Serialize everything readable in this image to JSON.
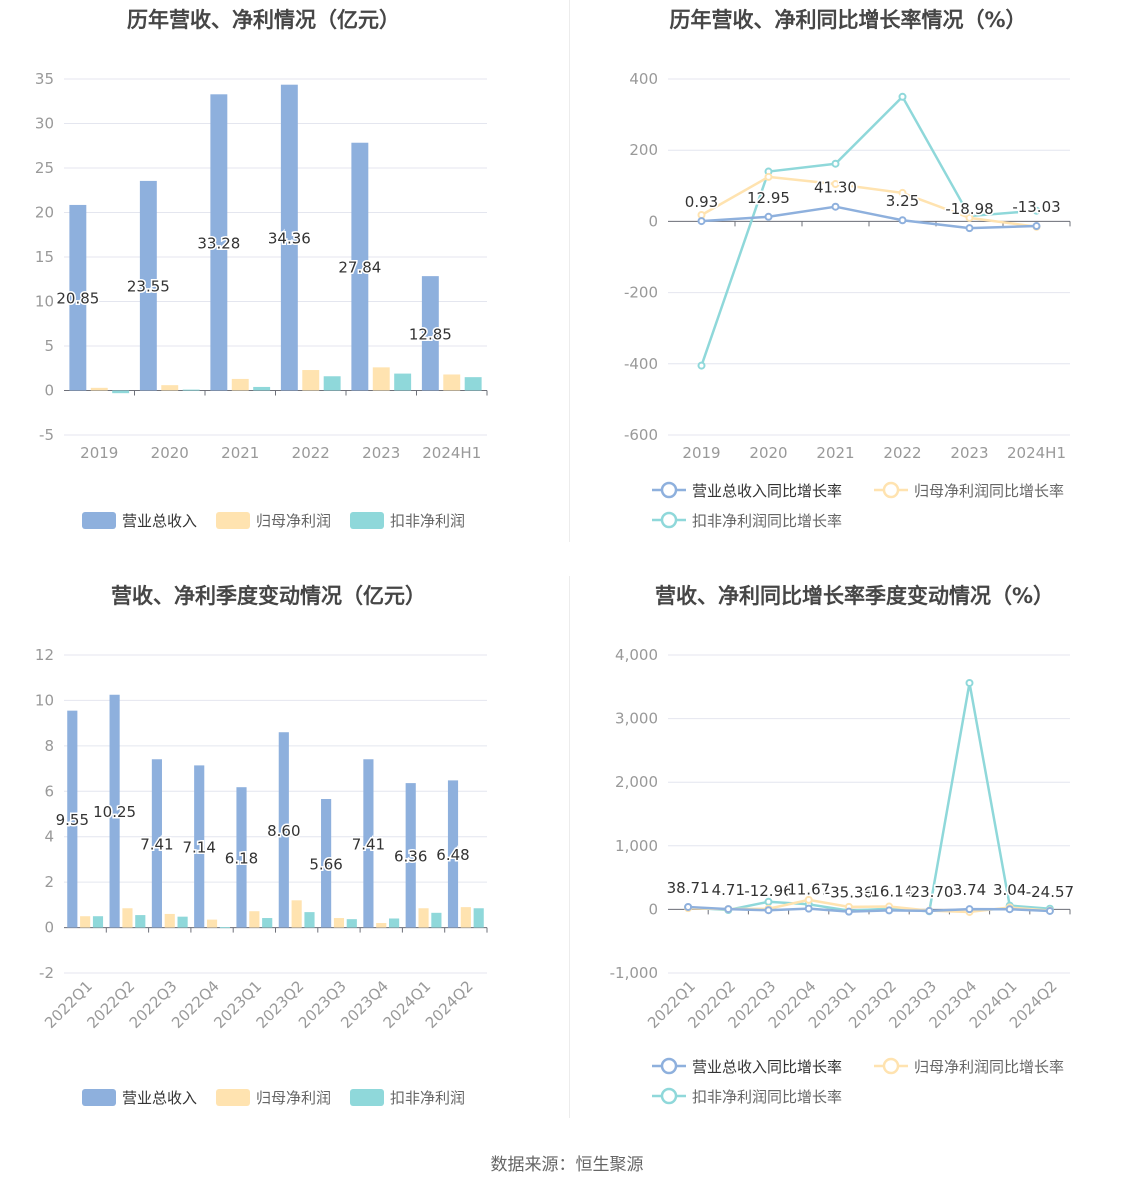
{
  "source_label": "数据来源：恒生聚源",
  "colors": {
    "revenue": "#8eb0dd",
    "parent": "#ffe3b0",
    "deducted": "#8fd8da",
    "grid": "#e4e6ef",
    "axis": "#999999",
    "label": "#333333"
  },
  "chart_data": [
    {
      "type": "bar",
      "title": "历年营收、净利情况（亿元）",
      "categories": [
        "2019",
        "2020",
        "2021",
        "2022",
        "2023",
        "2024H1"
      ],
      "ylim": [
        -5,
        35
      ],
      "yticks": [
        -5,
        0,
        5,
        10,
        15,
        20,
        25,
        30,
        35
      ],
      "series": [
        {
          "name": "营业总收入",
          "color": "#8eb0dd",
          "values": [
            20.85,
            23.55,
            33.28,
            34.36,
            27.84,
            12.85
          ],
          "labels": [
            "20.85",
            "23.55",
            "33.28",
            "34.36",
            "27.84",
            "12.85"
          ]
        },
        {
          "name": "归母净利润",
          "color": "#ffe3b0",
          "values": [
            0.3,
            0.6,
            1.3,
            2.3,
            2.6,
            1.8
          ]
        },
        {
          "name": "扣非净利润",
          "color": "#8fd8da",
          "values": [
            -0.3,
            0.1,
            0.4,
            1.6,
            1.9,
            1.5
          ]
        }
      ]
    },
    {
      "type": "line",
      "title": "历年营收、净利同比增长率情况（%）",
      "categories": [
        "2019",
        "2020",
        "2021",
        "2022",
        "2023",
        "2024H1"
      ],
      "ylim": [
        -600,
        400
      ],
      "yticks": [
        -600,
        -400,
        -200,
        0,
        200,
        400
      ],
      "series": [
        {
          "name": "营业总收入同比增长率",
          "color": "#8eb0dd",
          "values": [
            0.93,
            12.95,
            41.3,
            3.25,
            -18.98,
            -13.03
          ],
          "labels": [
            "0.93",
            "12.95",
            "41.30",
            "3.25",
            "-18.98",
            "-13.03"
          ]
        },
        {
          "name": "归母净利润同比增长率",
          "color": "#ffe3b0",
          "values": [
            18,
            125,
            105,
            80,
            10,
            -15
          ]
        },
        {
          "name": "扣非净利润同比增长率",
          "color": "#8fd8da",
          "values": [
            -405,
            140,
            162,
            350,
            15,
            30
          ]
        }
      ]
    },
    {
      "type": "bar",
      "title": "营收、净利季度变动情况（亿元）",
      "categories": [
        "2022Q1",
        "2022Q2",
        "2022Q3",
        "2022Q4",
        "2023Q1",
        "2023Q2",
        "2023Q3",
        "2023Q4",
        "2024Q1",
        "2024Q2"
      ],
      "ylim": [
        -2,
        12
      ],
      "yticks": [
        -2,
        0,
        2,
        4,
        6,
        8,
        10,
        12
      ],
      "series": [
        {
          "name": "营业总收入",
          "color": "#8eb0dd",
          "values": [
            9.55,
            10.25,
            7.41,
            7.14,
            6.18,
            8.6,
            5.66,
            7.41,
            6.36,
            6.48
          ],
          "labels": [
            "9.55",
            "10.25",
            "7.41",
            "7.14",
            "6.18",
            "8.60",
            "5.66",
            "7.41",
            "6.36",
            "6.48"
          ]
        },
        {
          "name": "归母净利润",
          "color": "#ffe3b0",
          "values": [
            0.5,
            0.85,
            0.6,
            0.35,
            0.72,
            1.2,
            0.42,
            0.2,
            0.85,
            0.9
          ]
        },
        {
          "name": "扣非净利润",
          "color": "#8fd8da",
          "values": [
            0.5,
            0.55,
            0.48,
            0.02,
            0.42,
            0.68,
            0.37,
            0.4,
            0.65,
            0.85
          ]
        }
      ]
    },
    {
      "type": "line",
      "title": "营收、净利同比增长率季度变动情况（%）",
      "categories": [
        "2022Q1",
        "2022Q2",
        "2022Q3",
        "2022Q4",
        "2023Q1",
        "2023Q2",
        "2023Q3",
        "2023Q4",
        "2024Q1",
        "2024Q2"
      ],
      "ylim": [
        -1000,
        4000
      ],
      "yticks": [
        -1000,
        0,
        1000,
        2000,
        3000,
        4000
      ],
      "series": [
        {
          "name": "营业总收入同比增长率",
          "color": "#8eb0dd",
          "values": [
            38.71,
            4.71,
            -12.96,
            11.67,
            -35.36,
            -16.14,
            -23.7,
            3.74,
            3.04,
            -24.57
          ],
          "labels": [
            "38.71",
            "4.71",
            "-12.96",
            "11.67",
            "-35.36",
            "-16.14",
            "-23.70",
            "3.74",
            "3.04",
            "-24.57"
          ]
        },
        {
          "name": "归母净利润同比增长率",
          "color": "#ffe3b0",
          "values": [
            20,
            5,
            10,
            150,
            40,
            45,
            -20,
            -40,
            30,
            -20
          ]
        },
        {
          "name": "扣非净利润同比增长率",
          "color": "#8fd8da",
          "values": [
            30,
            -10,
            120,
            80,
            -20,
            10,
            -30,
            3560,
            60,
            10
          ]
        }
      ]
    }
  ]
}
